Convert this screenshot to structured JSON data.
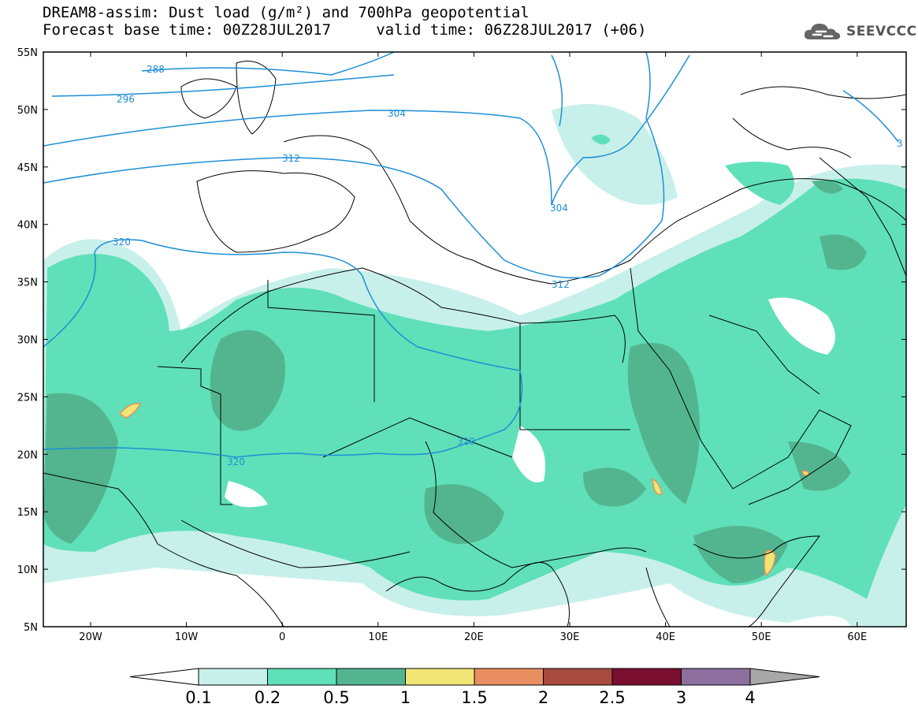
{
  "header": {
    "title_line1": "DREAM8-assim: Dust load (g/m²) and 700hPa geopotential",
    "title_line2": "Forecast base time: 00Z28JUL2017     valid time: 06Z28JUL2017 (+06)",
    "brand": "SEEVCCC",
    "brand_icon": "cloud-logo-icon"
  },
  "map": {
    "lat_labels": [
      "55N",
      "50N",
      "45N",
      "40N",
      "35N",
      "30N",
      "25N",
      "20N",
      "15N",
      "10N",
      "5N"
    ],
    "lon_labels": [
      "20W",
      "10W",
      "0",
      "10E",
      "20E",
      "30E",
      "40E",
      "50E",
      "60E"
    ],
    "contour_labels": [
      "288",
      "296",
      "304",
      "312",
      "304",
      "320",
      "312",
      "320",
      "320",
      "3"
    ],
    "colors": {
      "land_outline": "#000000",
      "contour": "#1e8fd6",
      "dust_0_1": "#c8f0ea",
      "dust_0_2": "#5fe0b8",
      "dust_0_5": "#53b58f",
      "dust_1": "#f1e675",
      "dust_1_5": "#e98e61"
    }
  },
  "colorbar": {
    "labels": [
      "0.1",
      "0.2",
      "0.5",
      "1",
      "1.5",
      "2",
      "2.5",
      "3",
      "4"
    ],
    "colors": [
      "#c8f0ea",
      "#5fe0b8",
      "#53b58f",
      "#f1e675",
      "#e98e61",
      "#a84a3d",
      "#7a0f2f",
      "#8d6fa0"
    ],
    "end_left_color": "#ffffff",
    "end_right_color": "#a8a8a8"
  }
}
